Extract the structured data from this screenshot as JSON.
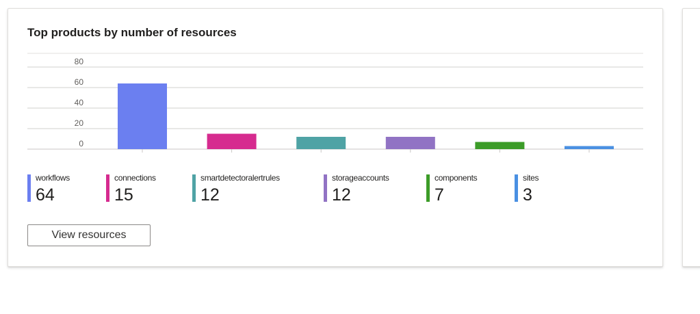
{
  "card": {
    "title": "Top products by number of resources",
    "button_label": "View resources"
  },
  "chart_data": {
    "type": "bar",
    "categories": [
      "workflows",
      "connections",
      "smartdetectoralertrules",
      "storageaccounts",
      "components",
      "sites"
    ],
    "values": [
      64,
      15,
      12,
      12,
      7,
      3
    ],
    "colors": [
      "#6b7ff0",
      "#d62b8f",
      "#4fa3a5",
      "#9173c4",
      "#3c9c28",
      "#4a90e2"
    ],
    "xlabel": "",
    "ylabel": "",
    "ylim": [
      0,
      80
    ],
    "yticks": [
      0,
      20,
      40,
      60,
      80
    ],
    "grid": true,
    "legend": "bottom"
  }
}
